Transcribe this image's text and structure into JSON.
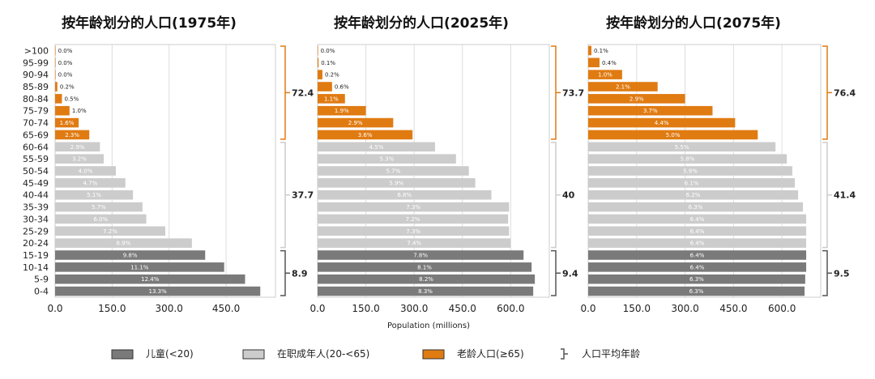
{
  "chart_data": [
    {
      "type": "bar",
      "title": "按年龄划分的人口(1975年)",
      "categories": [
        "0-4",
        "5-9",
        "10-14",
        "15-19",
        "20-24",
        "25-29",
        "30-34",
        "35-39",
        "40-44",
        "45-49",
        "50-54",
        "55-59",
        "60-64",
        "65-69",
        "70-74",
        "75-79",
        "80-84",
        "85-89",
        "90-94",
        "95-99",
        ">100"
      ],
      "values": [
        540,
        500,
        445,
        395,
        360,
        290,
        240,
        230,
        205,
        185,
        160,
        128,
        118,
        90,
        62,
        38,
        18,
        6,
        0.5,
        0.3,
        0.1
      ],
      "labels": [
        "13.3%",
        "12.4%",
        "11.1%",
        "9.8%",
        "8.9%",
        "7.2%",
        "6.0%",
        "5.7%",
        "5.1%",
        "4.7%",
        "4.0%",
        "3.2%",
        "2.9%",
        "2.3%",
        "1.6%",
        "1.0%",
        "0.5%",
        "0.2%",
        "0.0%",
        "0.0%",
        "0.0%"
      ],
      "groups": [
        "child",
        "child",
        "child",
        "child",
        "working",
        "working",
        "working",
        "working",
        "working",
        "working",
        "working",
        "working",
        "working",
        "elderly",
        "elderly",
        "elderly",
        "elderly",
        "elderly",
        "elderly",
        "elderly",
        "elderly"
      ],
      "avg_age": {
        "child": "8.9",
        "working": "37.7",
        "elderly": "72.4"
      },
      "xticks": [
        "0.0",
        "150.0",
        "300.0",
        "450.0"
      ],
      "xlim": [
        0,
        580
      ],
      "xlabel": "",
      "grid": true
    },
    {
      "type": "bar",
      "title": "按年龄划分的人口(2025年)",
      "categories": [
        "0-4",
        "5-9",
        "10-14",
        "15-19",
        "20-24",
        "25-29",
        "30-34",
        "35-39",
        "40-44",
        "45-49",
        "50-54",
        "55-59",
        "60-64",
        "65-69",
        "70-74",
        "75-79",
        "80-84",
        "85-89",
        "90-94",
        "95-99",
        ">100"
      ],
      "values": [
        670,
        675,
        665,
        640,
        600,
        595,
        592,
        595,
        540,
        490,
        470,
        430,
        365,
        295,
        235,
        150,
        85,
        45,
        15,
        3,
        0.5
      ],
      "labels": [
        "8.3%",
        "8.2%",
        "8.1%",
        "7.8%",
        "7.4%",
        "7.3%",
        "7.2%",
        "7.3%",
        "6.8%",
        "5.9%",
        "5.7%",
        "5.3%",
        "4.5%",
        "3.6%",
        "2.9%",
        "1.9%",
        "1.1%",
        "0.6%",
        "0.2%",
        "0.1%",
        "0.0%"
      ],
      "groups": [
        "child",
        "child",
        "child",
        "child",
        "working",
        "working",
        "working",
        "working",
        "working",
        "working",
        "working",
        "working",
        "working",
        "elderly",
        "elderly",
        "elderly",
        "elderly",
        "elderly",
        "elderly",
        "elderly",
        "elderly"
      ],
      "avg_age": {
        "child": "9.4",
        "working": "40",
        "elderly": "73.7"
      },
      "xticks": [
        "0.0",
        "150.0",
        "300.0",
        "450.0",
        "600.0"
      ],
      "xlim": [
        0,
        720
      ],
      "xlabel": "Population (millions)",
      "grid": true
    },
    {
      "type": "bar",
      "title": "按年龄划分的人口(2075年)",
      "categories": [
        "0-4",
        "5-9",
        "10-14",
        "15-19",
        "20-24",
        "25-29",
        "30-34",
        "35-39",
        "40-44",
        "45-49",
        "50-54",
        "55-59",
        "60-64",
        "65-69",
        "70-74",
        "75-79",
        "80-84",
        "85-89",
        "90-94",
        "95-99",
        ">100"
      ],
      "values": [
        670,
        672,
        675,
        675,
        675,
        675,
        675,
        665,
        650,
        640,
        632,
        615,
        580,
        525,
        455,
        385,
        300,
        215,
        105,
        35,
        10
      ],
      "labels": [
        "6.3%",
        "6.3%",
        "6.4%",
        "6.4%",
        "6.4%",
        "6.4%",
        "6.4%",
        "6.3%",
        "6.2%",
        "6.1%",
        "5.9%",
        "5.8%",
        "5.5%",
        "5.0%",
        "4.4%",
        "3.7%",
        "2.9%",
        "2.1%",
        "1.0%",
        "0.4%",
        "0.1%"
      ],
      "groups": [
        "child",
        "child",
        "child",
        "child",
        "working",
        "working",
        "working",
        "working",
        "working",
        "working",
        "working",
        "working",
        "working",
        "elderly",
        "elderly",
        "elderly",
        "elderly",
        "elderly",
        "elderly",
        "elderly",
        "elderly"
      ],
      "avg_age": {
        "child": "9.5",
        "working": "41.4",
        "elderly": "76.4"
      },
      "xticks": [
        "0.0",
        "150.0",
        "300.0",
        "450.0",
        "600.0"
      ],
      "xlim": [
        0,
        720
      ],
      "xlabel": "",
      "grid": true
    }
  ],
  "colors": {
    "child": "#7a7a7a",
    "working": "#cccccc",
    "elderly": "#e07b12",
    "bracket_working": "#cccccc",
    "bracket_child": "#555555",
    "bracket_elderly": "#e07b12"
  },
  "legend": [
    {
      "key": "child",
      "label": "儿童(<20)"
    },
    {
      "key": "working",
      "label": "在职成年人(20-<65)"
    },
    {
      "key": "elderly",
      "label": "老龄人口(≥65)"
    },
    {
      "key": "bracket",
      "label": "人口平均年龄"
    }
  ]
}
